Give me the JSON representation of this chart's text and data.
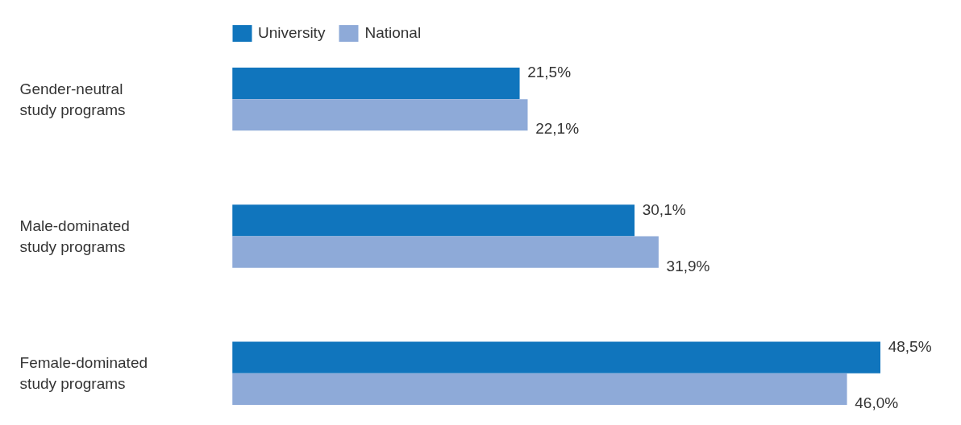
{
  "chart_data": {
    "type": "bar",
    "orientation": "horizontal",
    "categories": [
      "Gender-neutral\nstudy programs",
      "Male-dominated\nstudy programs",
      "Female-dominated\nstudy programs"
    ],
    "series": [
      {
        "name": "University",
        "color": "#1075bd",
        "values": [
          21.5,
          30.1,
          48.5
        ],
        "value_labels": [
          "21,5%",
          "30,1%",
          "48,5%"
        ]
      },
      {
        "name": "National",
        "color": "#8eaad8",
        "values": [
          22.1,
          31.9,
          46.0
        ],
        "value_labels": [
          "22,1%",
          "31,9%",
          "46,0%"
        ]
      }
    ],
    "legend": "top left",
    "grid": false
  }
}
